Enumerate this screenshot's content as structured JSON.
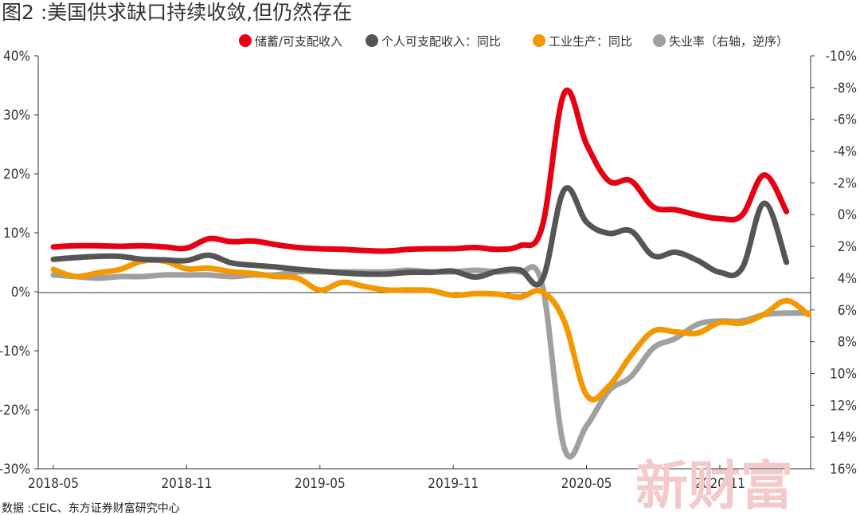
{
  "title": "图2 :美国供求缺口持续收敛,但仍然存在",
  "source": "数据 :CEIC、东方证券财富研究中心",
  "watermark": "新财富",
  "chart_data": {
    "type": "line",
    "x": [
      "2018-05",
      "2018-06",
      "2018-07",
      "2018-08",
      "2018-09",
      "2018-10",
      "2018-11",
      "2018-12",
      "2019-01",
      "2019-02",
      "2019-03",
      "2019-04",
      "2019-05",
      "2019-06",
      "2019-07",
      "2019-08",
      "2019-09",
      "2019-10",
      "2019-11",
      "2019-12",
      "2020-01",
      "2020-02",
      "2020-03",
      "2020-04",
      "2020-05",
      "2020-06",
      "2020-07",
      "2020-08",
      "2020-09",
      "2020-10",
      "2020-11",
      "2020-12",
      "2021-01",
      "2021-02",
      "2021-03"
    ],
    "x_tick_labels": [
      "2018-05",
      "2018-11",
      "2019-05",
      "2019-11",
      "2020-05",
      "2020-11"
    ],
    "y_left": {
      "range": [
        -30,
        40
      ],
      "ticks": [
        -30,
        -20,
        -10,
        0,
        10,
        20,
        30,
        40
      ],
      "tick_labels": [
        "-30%",
        "-20%",
        "-10%",
        "0%",
        "10%",
        "20%",
        "30%",
        "40%"
      ]
    },
    "y_right": {
      "range": [
        -10,
        16
      ],
      "reversed": true,
      "ticks": [
        -10,
        -8,
        -6,
        -4,
        -2,
        0,
        2,
        4,
        6,
        8,
        10,
        12,
        14,
        16
      ],
      "tick_labels": [
        "-10%",
        "-8%",
        "-6%",
        "-4%",
        "-2%",
        "0%",
        "2%",
        "4%",
        "6%",
        "8%",
        "10%",
        "12%",
        "14%",
        "16%"
      ]
    },
    "legend_position": "top-right",
    "grid": false,
    "series": [
      {
        "name": "储蓄/可支配收入",
        "color": "#e60012",
        "axis": "left",
        "values": [
          7.6,
          7.8,
          7.8,
          7.7,
          7.8,
          7.6,
          7.4,
          9.0,
          8.5,
          8.6,
          8.0,
          7.5,
          7.3,
          7.2,
          7.0,
          6.9,
          7.2,
          7.3,
          7.3,
          7.5,
          7.2,
          7.8,
          11.0,
          33.7,
          25.0,
          18.8,
          18.8,
          14.4,
          13.9,
          13.0,
          12.4,
          13.0,
          19.8,
          13.6,
          null
        ]
      },
      {
        "name": "个人可支配收入：同比",
        "color": "#555555",
        "axis": "left",
        "values": [
          5.5,
          5.8,
          6.0,
          6.0,
          5.5,
          5.4,
          5.3,
          6.2,
          4.9,
          4.5,
          4.2,
          3.8,
          3.5,
          3.2,
          3.0,
          3.0,
          3.3,
          3.3,
          3.5,
          2.5,
          3.5,
          3.7,
          2.0,
          17.3,
          11.8,
          9.9,
          10.3,
          6.1,
          6.7,
          5.3,
          3.3,
          4.0,
          15.0,
          5.0,
          null
        ]
      },
      {
        "name": "工业生产：同比",
        "color": "#f39800",
        "axis": "left",
        "values": [
          3.8,
          2.6,
          3.2,
          3.8,
          5.2,
          5.2,
          3.9,
          4.0,
          3.4,
          3.1,
          2.6,
          2.3,
          0.3,
          1.6,
          0.9,
          0.3,
          0.3,
          0.2,
          -0.6,
          -0.3,
          -0.4,
          -0.9,
          0.0,
          -5.0,
          -17.5,
          -16.0,
          -10.8,
          -6.7,
          -6.8,
          -7.0,
          -5.2,
          -5.3,
          -3.8,
          -1.5,
          -3.9
        ]
      },
      {
        "name": "失业率（右轴，逆序）",
        "color": "#a0a0a0",
        "axis": "right",
        "values": [
          3.8,
          3.9,
          4.0,
          3.9,
          3.9,
          3.8,
          3.8,
          3.8,
          3.9,
          3.8,
          3.8,
          3.6,
          3.6,
          3.6,
          3.6,
          3.6,
          3.5,
          3.6,
          3.6,
          3.5,
          3.6,
          3.6,
          4.4,
          14.7,
          13.3,
          11.1,
          10.2,
          8.4,
          7.8,
          6.9,
          6.7,
          6.7,
          6.3,
          6.2,
          6.2
        ]
      }
    ]
  }
}
